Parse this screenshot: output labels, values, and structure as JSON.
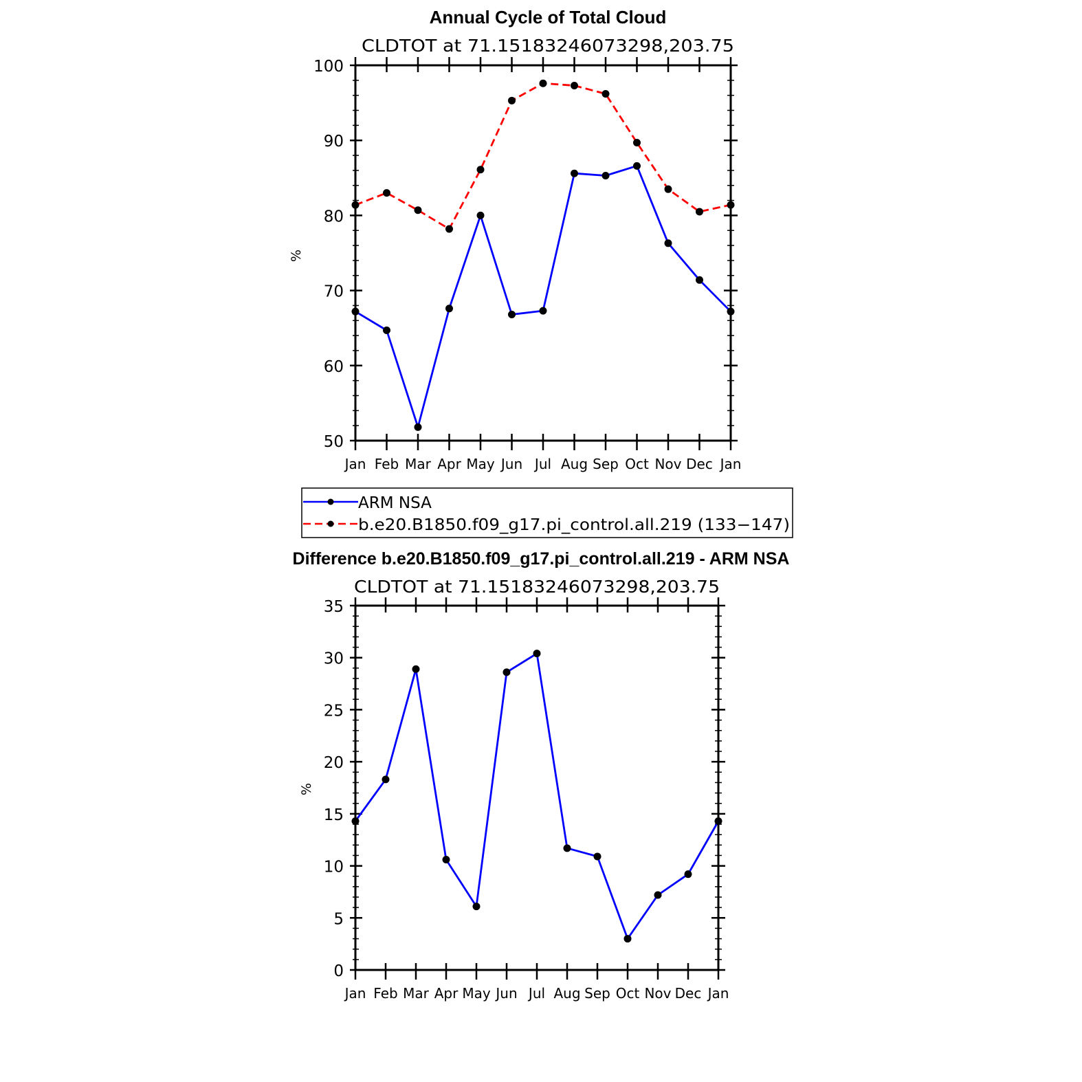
{
  "chart_data": [
    {
      "type": "line",
      "title": "Annual Cycle of Total Cloud",
      "subtitle": "CLDTOT at 71.15183246073298,203.75",
      "xlabel": "",
      "ylabel": "%",
      "categories": [
        "Jan",
        "Feb",
        "Mar",
        "Apr",
        "May",
        "Jun",
        "Jul",
        "Aug",
        "Sep",
        "Oct",
        "Nov",
        "Dec",
        "Jan"
      ],
      "ylim": [
        50,
        100
      ],
      "yticks": [
        "50",
        "60",
        "70",
        "80",
        "90",
        "100"
      ],
      "grid": false,
      "legend_position": "bottom",
      "series": [
        {
          "name": "ARM NSA",
          "color": "#0000ff",
          "style": "solid",
          "marker": "filled-circle",
          "values": [
            67.2,
            64.7,
            51.8,
            67.6,
            80.0,
            66.8,
            67.3,
            85.6,
            85.3,
            86.6,
            76.3,
            71.4,
            67.2
          ]
        },
        {
          "name": "b.e20.B1850.f09_g17.pi_control.all.219 (133−147)",
          "color": "#ff0000",
          "style": "dashed",
          "marker": "filled-circle",
          "values": [
            81.4,
            83.0,
            80.7,
            78.2,
            86.1,
            95.3,
            97.6,
            97.3,
            96.2,
            89.7,
            83.5,
            80.5,
            81.4
          ]
        }
      ]
    },
    {
      "type": "line",
      "title": "Difference b.e20.B1850.f09_g17.pi_control.all.219 - ARM NSA",
      "subtitle": "CLDTOT at 71.15183246073298,203.75",
      "xlabel": "",
      "ylabel": "%",
      "categories": [
        "Jan",
        "Feb",
        "Mar",
        "Apr",
        "May",
        "Jun",
        "Jul",
        "Aug",
        "Sep",
        "Oct",
        "Nov",
        "Dec",
        "Jan"
      ],
      "ylim": [
        0,
        35
      ],
      "yticks": [
        "0",
        "5",
        "10",
        "15",
        "20",
        "25",
        "30",
        "35"
      ],
      "grid": false,
      "series": [
        {
          "color": "#0000ff",
          "style": "solid",
          "marker": "filled-circle",
          "values": [
            14.3,
            18.3,
            28.9,
            10.6,
            6.1,
            28.6,
            30.4,
            11.7,
            10.9,
            3.0,
            7.2,
            9.2,
            14.3
          ]
        }
      ]
    }
  ]
}
